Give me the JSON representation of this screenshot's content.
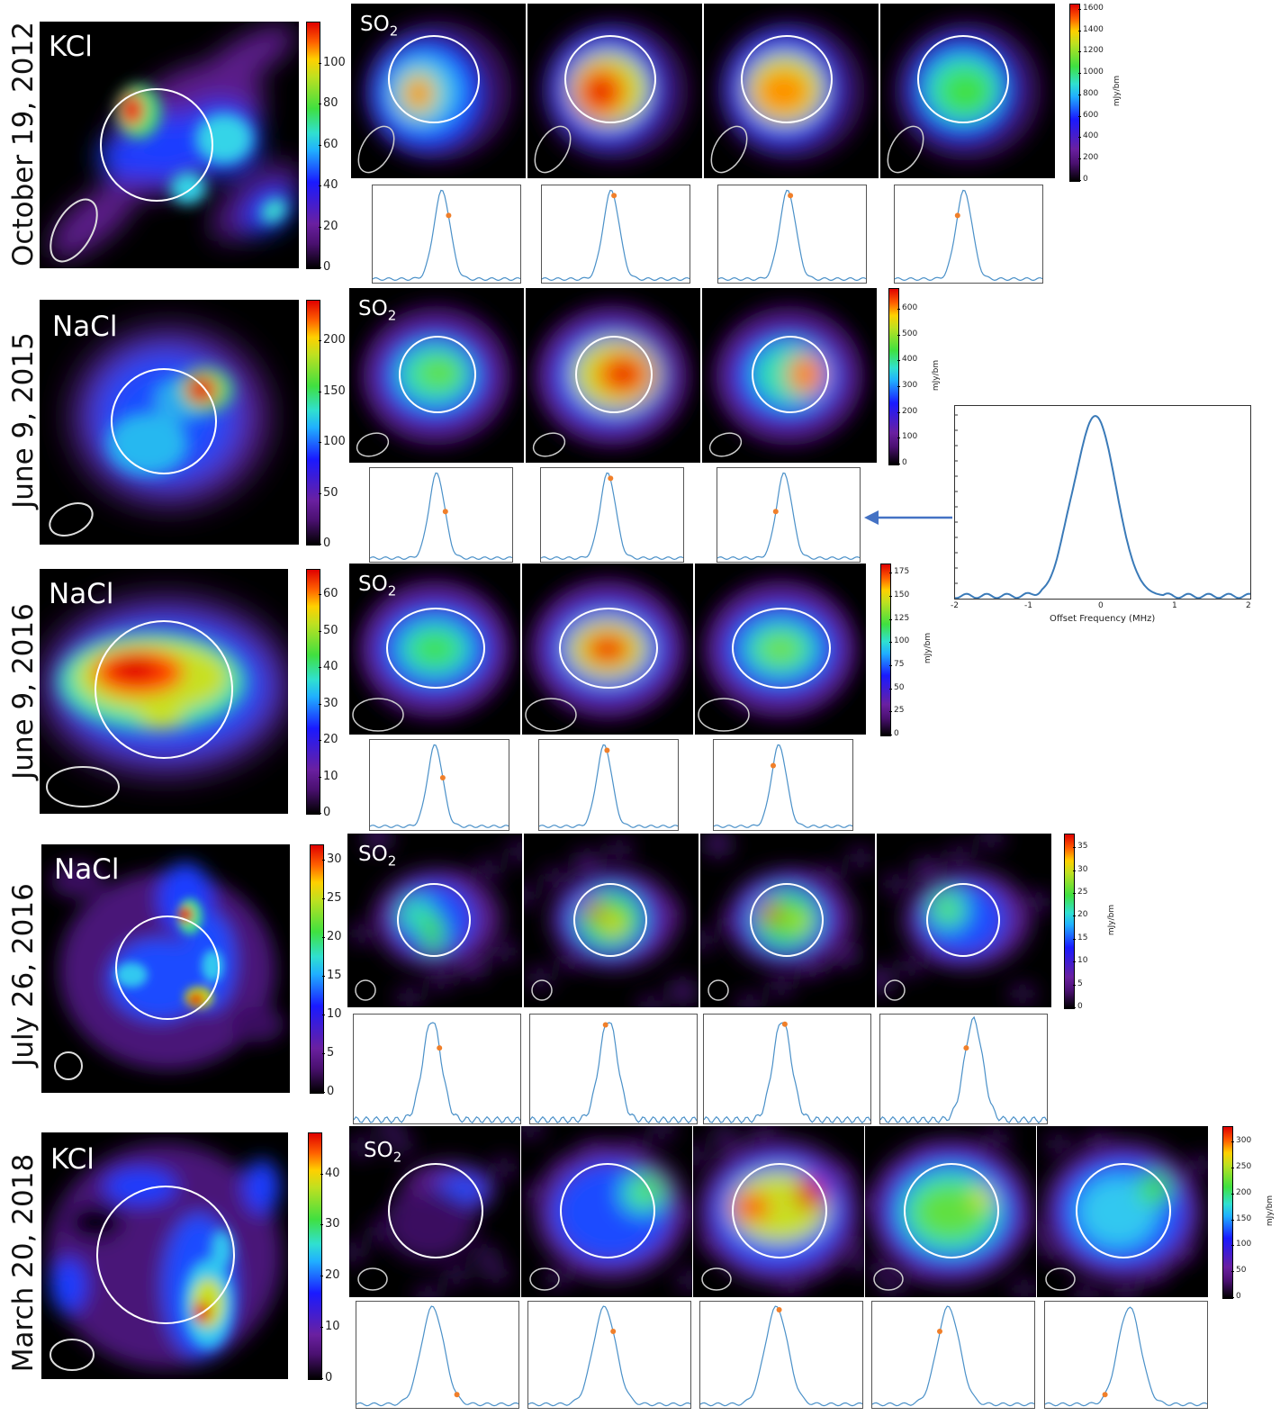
{
  "rows": [
    {
      "date": "October 19, 2012",
      "molecule": "KCl",
      "so2_label": "SO",
      "so2_sub": "2",
      "main_ticks": [
        "0",
        "20",
        "40",
        "60",
        "80",
        "100"
      ],
      "main_max": 120,
      "so2_ticks": [
        "0",
        "200",
        "400",
        "600",
        "800",
        "1000",
        "1200",
        "1400",
        "1600"
      ],
      "so2_max": 1650,
      "so2_unit": "mJy/bm",
      "spec_dots": [
        0.72,
        0.98,
        0.98,
        0.72
      ]
    },
    {
      "date": "June 9, 2015",
      "molecule": "NaCl",
      "so2_label": "SO",
      "so2_sub": "2",
      "main_ticks": [
        "0",
        "50",
        "100",
        "150",
        "200"
      ],
      "main_max": 240,
      "so2_ticks": [
        "0",
        "100",
        "200",
        "300",
        "400",
        "500",
        "600"
      ],
      "so2_max": 680,
      "so2_unit": "mJy/bm",
      "spec_dots": [
        0.55,
        1.0,
        0.55
      ]
    },
    {
      "date": "June 9, 2016",
      "molecule": "NaCl",
      "so2_label": "SO",
      "so2_sub": "2",
      "main_ticks": [
        "0",
        "10",
        "20",
        "30",
        "40",
        "50",
        "60"
      ],
      "main_max": 67,
      "so2_ticks": [
        "0",
        "25",
        "50",
        "75",
        "100",
        "125",
        "150",
        "175"
      ],
      "so2_max": 185,
      "so2_unit": "mJy/bm",
      "spec_dots": [
        0.6,
        1.0,
        0.75
      ]
    },
    {
      "date": "July 26, 2016",
      "molecule": "NaCl",
      "so2_label": "SO",
      "so2_sub": "2",
      "main_ticks": [
        "0",
        "5",
        "10",
        "15",
        "20",
        "25",
        "30"
      ],
      "main_max": 32,
      "so2_ticks": [
        "0",
        "5",
        "10",
        "15",
        "20",
        "25",
        "30",
        "35"
      ],
      "so2_max": 38,
      "so2_unit": "mJy/bm",
      "spec_dots": [
        0.72,
        0.95,
        1.0,
        0.72
      ]
    },
    {
      "date": "March 20, 2018",
      "molecule": "KCl",
      "so2_label": "SO",
      "so2_sub": "2",
      "main_ticks": [
        "0",
        "10",
        "20",
        "30",
        "40"
      ],
      "main_max": 48,
      "so2_ticks": [
        "0",
        "50",
        "100",
        "150",
        "200",
        "250",
        "300"
      ],
      "so2_max": 330,
      "so2_unit": "mJy/bm",
      "spec_dots": [
        0.1,
        0.75,
        1.0,
        0.75,
        0.1
      ]
    }
  ],
  "inset": {
    "xlabel": "Offset Frequency (MHz)",
    "xticks": [
      "-2",
      "-1",
      "0",
      "1",
      "2"
    ],
    "xlim": [
      -2,
      2
    ]
  },
  "colors": {
    "spectrum": "#4a90c8",
    "dot": "#f07f2a",
    "arrow": "#4472c4",
    "circle": "#ffffff"
  }
}
